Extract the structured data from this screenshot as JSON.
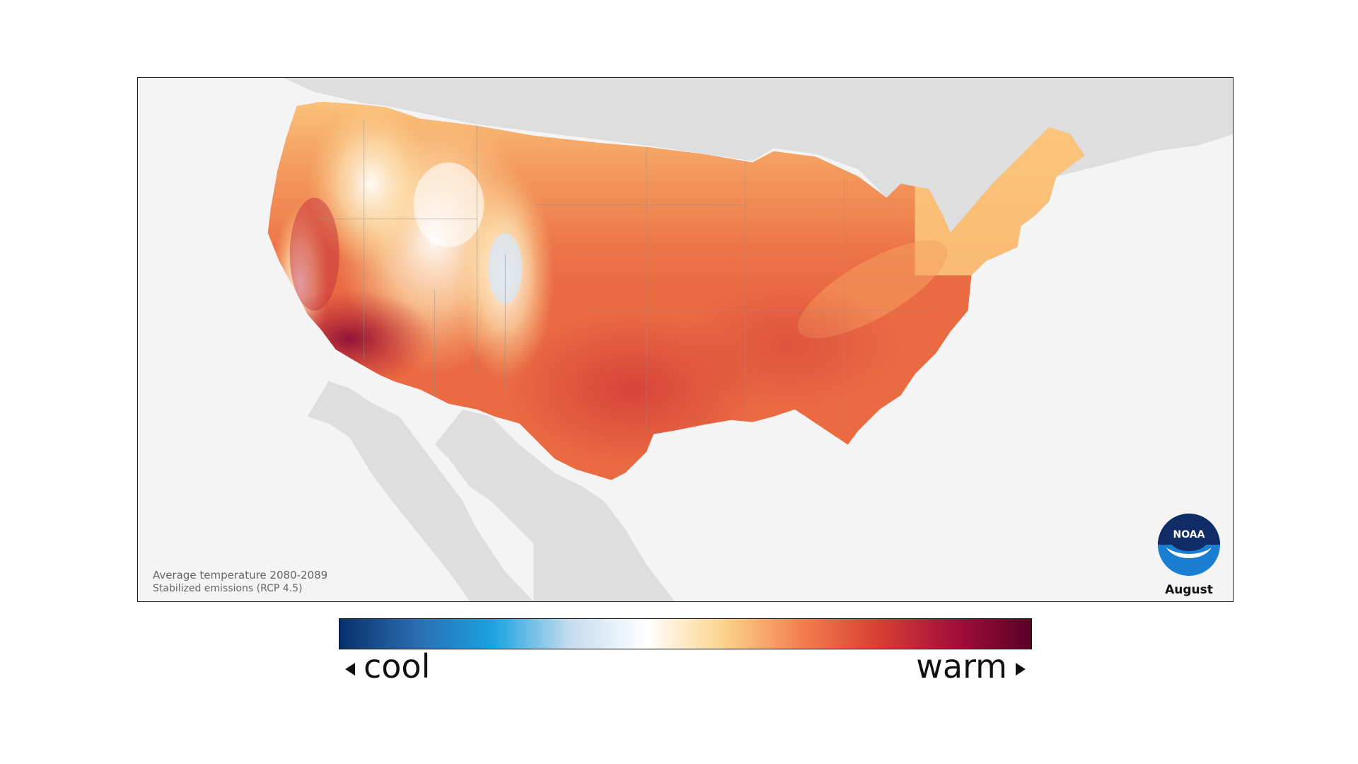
{
  "map": {
    "caption_line1": "Average temperature 2080-2089",
    "caption_line2": "Stabilized emissions (RCP 4.5)",
    "month": "August",
    "logo_text": "NOAA"
  },
  "legend": {
    "low_label": "cool",
    "high_label": "warm",
    "colors": [
      "#08306b",
      "#2b6cb0",
      "#1ba3e0",
      "#c6dcef",
      "#ffffff",
      "#fcd38a",
      "#f3804f",
      "#d73f33",
      "#a50f3a",
      "#5b0026"
    ]
  },
  "colors": {
    "land_neighbor": "#dedede",
    "ocean": "#f4f4f4",
    "us_base": "#ea6a42",
    "us_cool": "#fbc97e",
    "us_hot": "#a8123a",
    "highland": "#ffffff"
  }
}
